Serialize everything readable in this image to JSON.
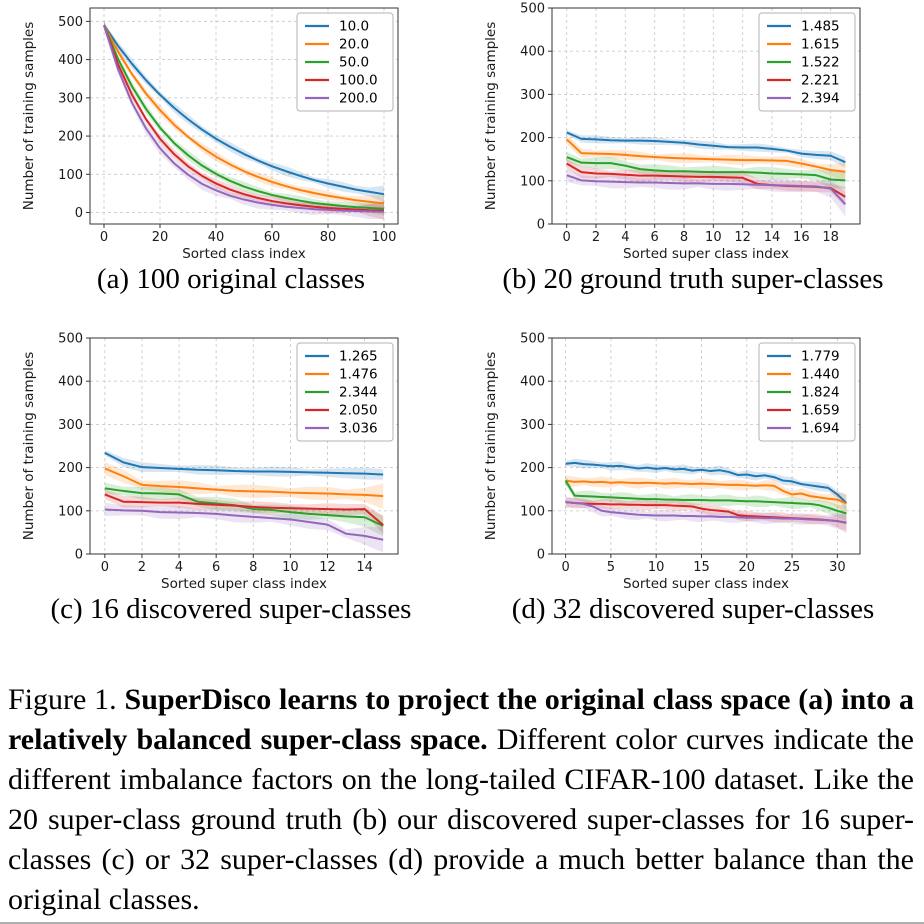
{
  "page": {
    "background": "#ffffff",
    "divider_color": "#aeaeae"
  },
  "caption": {
    "prefix": "Figure 1. ",
    "bold": "SuperDisco learns to project the original class space (a) into a relatively balanced super-class space.",
    "rest": " Different color curves indicate the different imbalance factors on the long-tailed CIFAR-100 dataset. Like the 20 super-class ground truth (b) our discovered super-classes for 16 super-classes (c) or 32 super-classes (d) provide a much better balance than the original classes."
  },
  "colors": {
    "blue": "#1f77b4",
    "orange": "#ff7f0e",
    "green": "#2ca02c",
    "red": "#d62728",
    "purple": "#9467bd"
  },
  "chart_data": [
    {
      "id": "a",
      "type": "line",
      "subcaption": "(a) 100 original classes",
      "xlabel": "Sorted class index",
      "ylabel": "Number of training samples",
      "xlim": [
        -5,
        105
      ],
      "ylim": [
        -30,
        535
      ],
      "xticks": [
        0,
        20,
        40,
        60,
        80,
        100
      ],
      "yticks": [
        0,
        100,
        200,
        300,
        400,
        500
      ],
      "grid": true,
      "legend_position": "upper right",
      "x": [
        0,
        5,
        10,
        15,
        20,
        25,
        30,
        35,
        40,
        45,
        50,
        55,
        60,
        65,
        70,
        75,
        80,
        85,
        90,
        95,
        100
      ],
      "series": [
        {
          "name": "10.0",
          "color": "#1f77b4",
          "band": 12,
          "values": [
            490,
            436,
            389,
            346,
            308,
            274,
            244,
            217,
            193,
            172,
            153,
            136,
            121,
            108,
            96,
            85,
            76,
            68,
            60,
            54,
            48
          ]
        },
        {
          "name": "20.0",
          "color": "#ff7f0e",
          "band": 12,
          "values": [
            490,
            421,
            362,
            311,
            268,
            230,
            198,
            170,
            146,
            126,
            108,
            93,
            80,
            69,
            59,
            51,
            44,
            38,
            32,
            28,
            24
          ]
        },
        {
          "name": "50.0",
          "color": "#2ca02c",
          "band": 12,
          "values": [
            490,
            402,
            330,
            271,
            222,
            182,
            150,
            123,
            101,
            83,
            68,
            56,
            46,
            38,
            31,
            25,
            21,
            17,
            14,
            12,
            10
          ]
        },
        {
          "name": "100.0",
          "color": "#d62728",
          "band": 12,
          "values": [
            490,
            388,
            308,
            244,
            193,
            153,
            121,
            96,
            76,
            60,
            48,
            38,
            30,
            24,
            19,
            15,
            12,
            10,
            8,
            6,
            5
          ]
        },
        {
          "name": "200.0",
          "color": "#9467bd",
          "band": 15,
          "values": [
            490,
            375,
            287,
            220,
            168,
            129,
            99,
            75,
            58,
            44,
            34,
            26,
            20,
            15,
            12,
            9,
            7,
            5,
            4,
            3,
            2
          ]
        }
      ]
    },
    {
      "id": "b",
      "type": "line",
      "subcaption": "(b) 20 ground truth super-classes",
      "xlabel": "Sorted super class index",
      "ylabel": "Number of training samples",
      "xlim": [
        -1,
        20
      ],
      "ylim": [
        0,
        500
      ],
      "xticks": [
        0,
        2,
        4,
        6,
        8,
        10,
        12,
        14,
        16,
        18
      ],
      "yticks": [
        0,
        100,
        200,
        300,
        400,
        500
      ],
      "grid": true,
      "legend_position": "upper right",
      "x": [
        0,
        1,
        2,
        3,
        4,
        5,
        6,
        7,
        8,
        9,
        10,
        11,
        12,
        13,
        14,
        15,
        16,
        17,
        18,
        19
      ],
      "series": [
        {
          "name": "1.485",
          "color": "#1f77b4",
          "band": 9,
          "values": [
            212,
            197,
            196,
            194,
            193,
            193,
            192,
            190,
            188,
            184,
            181,
            178,
            177,
            177,
            174,
            170,
            163,
            160,
            158,
            143
          ]
        },
        {
          "name": "1.615",
          "color": "#ff7f0e",
          "band": 11,
          "values": [
            196,
            164,
            163,
            162,
            160,
            157,
            155,
            153,
            152,
            151,
            150,
            149,
            148,
            148,
            147,
            146,
            140,
            133,
            125,
            121
          ]
        },
        {
          "name": "1.522",
          "color": "#2ca02c",
          "band": 14,
          "values": [
            155,
            142,
            141,
            141,
            135,
            127,
            124,
            122,
            122,
            121,
            120,
            120,
            120,
            119,
            117,
            116,
            115,
            113,
            103,
            101
          ]
        },
        {
          "name": "2.221",
          "color": "#d62728",
          "band": 13,
          "values": [
            140,
            120,
            117,
            116,
            114,
            112,
            112,
            111,
            110,
            109,
            109,
            108,
            107,
            93,
            90,
            88,
            87,
            86,
            83,
            63
          ]
        },
        {
          "name": "2.394",
          "color": "#9467bd",
          "band": 15,
          "values": [
            113,
            101,
            99,
            98,
            97,
            96,
            96,
            95,
            94,
            94,
            93,
            93,
            92,
            91,
            90,
            89,
            88,
            87,
            82,
            46
          ]
        }
      ]
    },
    {
      "id": "c",
      "type": "line",
      "subcaption": "(c) 16 discovered super-classes",
      "xlabel": "Sorted super class index",
      "ylabel": "Number of training samples",
      "xlim": [
        -0.8,
        15.8
      ],
      "ylim": [
        0,
        500
      ],
      "xticks": [
        0,
        2,
        4,
        6,
        8,
        10,
        12,
        14
      ],
      "yticks": [
        0,
        100,
        200,
        300,
        400,
        500
      ],
      "grid": true,
      "legend_position": "upper right",
      "x": [
        0,
        1,
        2,
        3,
        4,
        5,
        6,
        7,
        8,
        9,
        10,
        11,
        12,
        13,
        14,
        15
      ],
      "series": [
        {
          "name": "1.265",
          "color": "#1f77b4",
          "band": 11,
          "values": [
            234,
            212,
            201,
            199,
            197,
            195,
            194,
            192,
            191,
            191,
            190,
            189,
            188,
            187,
            186,
            184
          ]
        },
        {
          "name": "1.476",
          "color": "#ff7f0e",
          "band": 15,
          "values": [
            198,
            180,
            160,
            157,
            155,
            152,
            149,
            146,
            145,
            144,
            142,
            141,
            140,
            138,
            137,
            134
          ]
        },
        {
          "name": "2.344",
          "color": "#2ca02c",
          "band": 15,
          "values": [
            152,
            146,
            141,
            140,
            138,
            121,
            117,
            113,
            104,
            102,
            97,
            93,
            90,
            87,
            85,
            65
          ]
        },
        {
          "name": "2.050",
          "color": "#d62728",
          "band": 13,
          "values": [
            138,
            121,
            120,
            119,
            119,
            116,
            114,
            112,
            109,
            107,
            106,
            105,
            104,
            103,
            104,
            67
          ]
        },
        {
          "name": "3.036",
          "color": "#9467bd",
          "band": 15,
          "values": [
            103,
            101,
            100,
            97,
            96,
            95,
            93,
            89,
            86,
            83,
            80,
            74,
            68,
            47,
            42,
            33
          ]
        }
      ]
    },
    {
      "id": "d",
      "type": "line",
      "subcaption": "(d) 32 discovered super-classes",
      "xlabel": "Sorted super class index",
      "ylabel": "Number of training samples",
      "xlim": [
        -1.5,
        32.5
      ],
      "ylim": [
        0,
        500
      ],
      "xticks": [
        0,
        5,
        10,
        15,
        20,
        25,
        30
      ],
      "yticks": [
        0,
        100,
        200,
        300,
        400,
        500
      ],
      "grid": true,
      "legend_position": "upper right",
      "x": [
        0,
        1,
        2,
        3,
        4,
        5,
        6,
        7,
        8,
        9,
        10,
        11,
        12,
        13,
        14,
        15,
        16,
        17,
        18,
        19,
        20,
        21,
        22,
        23,
        24,
        25,
        26,
        27,
        28,
        29,
        30,
        31
      ],
      "series": [
        {
          "name": "1.779",
          "color": "#1f77b4",
          "band": 10,
          "values": [
            209,
            211,
            208,
            207,
            205,
            203,
            204,
            201,
            198,
            200,
            197,
            199,
            196,
            197,
            193,
            195,
            192,
            194,
            190,
            183,
            184,
            180,
            182,
            178,
            170,
            168,
            162,
            159,
            156,
            153,
            138,
            118
          ]
        },
        {
          "name": "1.440",
          "color": "#ff7f0e",
          "band": 12,
          "values": [
            170,
            167,
            168,
            166,
            167,
            165,
            166,
            165,
            164,
            165,
            164,
            163,
            164,
            163,
            162,
            163,
            162,
            161,
            160,
            160,
            159,
            158,
            159,
            158,
            146,
            138,
            140,
            134,
            131,
            128,
            126,
            117
          ]
        },
        {
          "name": "1.824",
          "color": "#2ca02c",
          "band": 13,
          "values": [
            170,
            135,
            134,
            133,
            132,
            131,
            130,
            129,
            128,
            127,
            127,
            126,
            126,
            125,
            125,
            125,
            124,
            124,
            124,
            123,
            122,
            122,
            121,
            120,
            119,
            118,
            117,
            116,
            113,
            107,
            100,
            94
          ]
        },
        {
          "name": "1.659",
          "color": "#d62728",
          "band": 12,
          "values": [
            120,
            118,
            117,
            116,
            116,
            115,
            115,
            114,
            114,
            113,
            113,
            113,
            112,
            111,
            110,
            105,
            102,
            100,
            98,
            90,
            88,
            87,
            86,
            85,
            84,
            83,
            82,
            81,
            80,
            78,
            76,
            72
          ]
        },
        {
          "name": "1.694",
          "color": "#9467bd",
          "band": 13,
          "values": [
            120,
            118,
            116,
            110,
            100,
            97,
            95,
            93,
            91,
            90,
            89,
            89,
            89,
            88,
            88,
            87,
            87,
            86,
            86,
            85,
            84,
            84,
            83,
            83,
            82,
            82,
            81,
            80,
            79,
            78,
            76,
            73
          ]
        }
      ]
    }
  ]
}
